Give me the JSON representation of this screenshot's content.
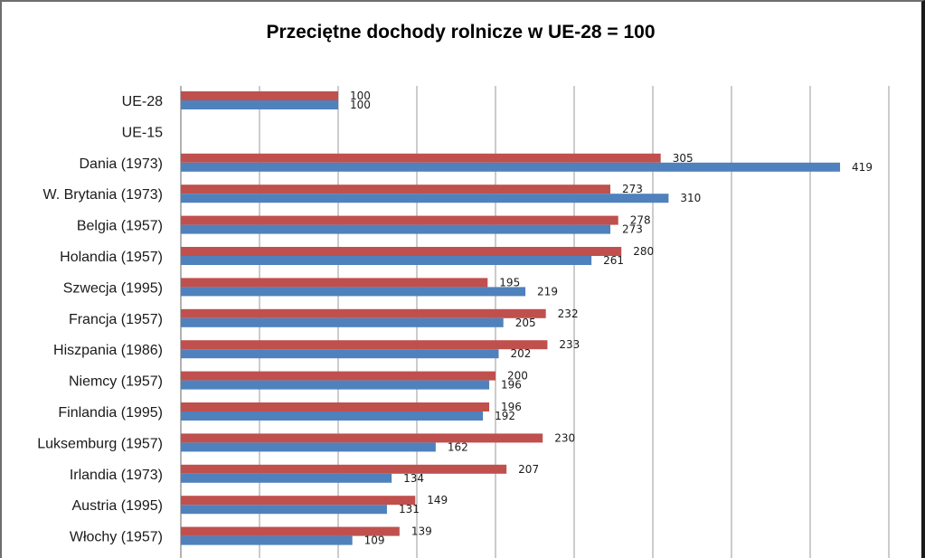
{
  "chart_data": {
    "type": "bar",
    "orientation": "horizontal",
    "title": "Przeciętne dochody rolnicze w UE-28 = 100",
    "categories": [
      "UE-28",
      "UE-15",
      "Dania (1973)",
      "W. Brytania (1973)",
      "Belgia (1957)",
      "Holandia (1957)",
      "Szwecja (1995)",
      "Francja (1957)",
      "Hiszpania (1986)",
      "Niemcy (1957)",
      "Finlandia (1995)",
      "Luksemburg (1957)",
      "Irlandia (1973)",
      "Austria (1995)",
      "Włochy (1957)"
    ],
    "series": [
      {
        "color": "#c0504d",
        "values": [
          100,
          null,
          305,
          273,
          278,
          280,
          195,
          232,
          233,
          200,
          196,
          230,
          207,
          149,
          139
        ]
      },
      {
        "color": "#4f81bd",
        "values": [
          100,
          null,
          419,
          310,
          273,
          261,
          219,
          205,
          202,
          196,
          192,
          162,
          134,
          131,
          109
        ]
      }
    ],
    "xlim": [
      0,
      450
    ],
    "grid": true,
    "legend": "none"
  }
}
